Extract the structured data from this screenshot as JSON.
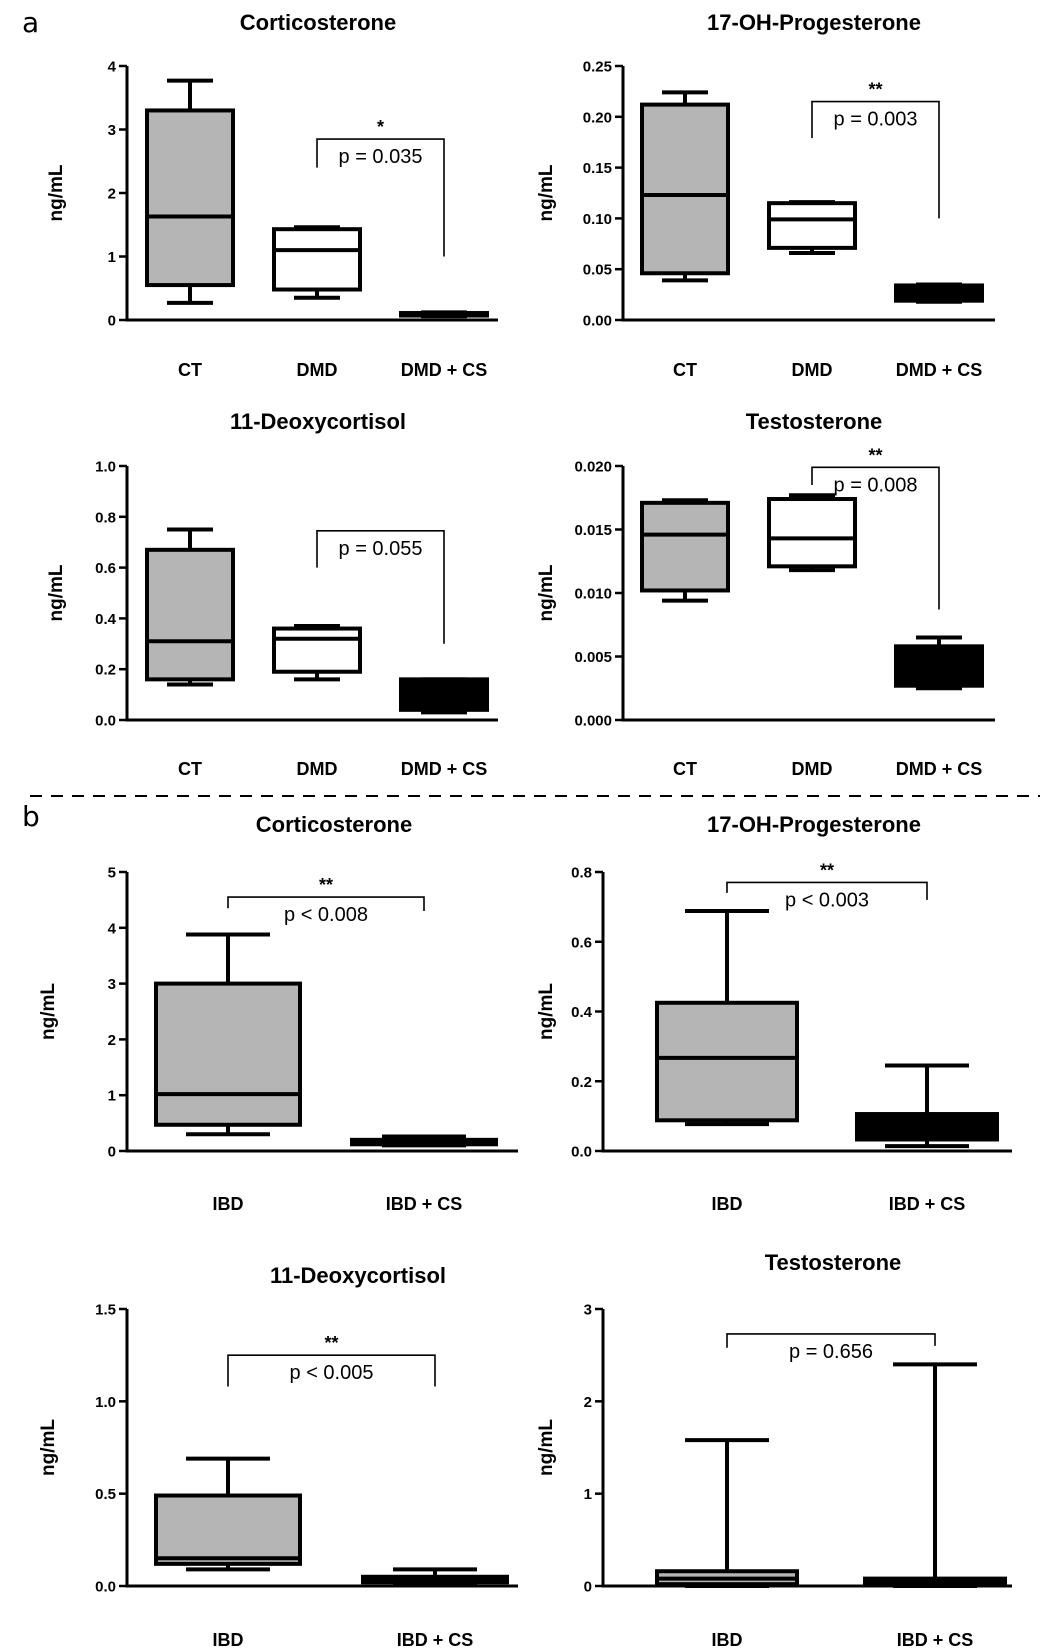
{
  "panels": [
    {
      "letter": "a"
    },
    {
      "letter": "b"
    }
  ],
  "colors": {
    "ct_fill": "#b5b5b5",
    "ibd_fill": "#b5b5b5",
    "dmd_fill": "#ffffff",
    "dmd_cs_fill": "#000000",
    "ibd_cs_fill": "#000000",
    "stroke": "#000000"
  },
  "chart_data": [
    {
      "panel": "a",
      "type": "box",
      "title": "Corticosterone",
      "ylabel": "ng/mL",
      "ylim": [
        0,
        4
      ],
      "yticks": [
        "0",
        "1",
        "2",
        "3",
        "4"
      ],
      "ytick_values": [
        0,
        1,
        2,
        3,
        4
      ],
      "categories": [
        "CT",
        "DMD",
        "DMD + CS"
      ],
      "boxes": [
        {
          "min": 0.27,
          "q1": 0.55,
          "median": 1.63,
          "q3": 3.3,
          "max": 3.77
        },
        {
          "min": 0.35,
          "q1": 0.48,
          "median": 1.1,
          "q3": 1.43,
          "max": 1.46
        },
        {
          "min": 0.06,
          "q1": 0.07,
          "median": 0.09,
          "q3": 0.11,
          "max": 0.12
        }
      ],
      "bracket": {
        "from": 1,
        "to": 2,
        "top": 2.85,
        "left_bottom": 2.4,
        "right_bottom": 1.0,
        "stars": "*",
        "pvalue": "p = 0.035"
      }
    },
    {
      "panel": "a",
      "type": "box",
      "title": "17-OH-Progesterone",
      "ylabel": "ng/mL",
      "ylim": [
        0,
        0.25
      ],
      "yticks": [
        "0.00",
        "0.05",
        "0.10",
        "0.15",
        "0.20",
        "0.25"
      ],
      "ytick_values": [
        0,
        0.05,
        0.1,
        0.15,
        0.2,
        0.25
      ],
      "categories": [
        "CT",
        "DMD",
        "DMD + CS"
      ],
      "boxes": [
        {
          "min": 0.039,
          "q1": 0.046,
          "median": 0.123,
          "q3": 0.212,
          "max": 0.224
        },
        {
          "min": 0.066,
          "q1": 0.071,
          "median": 0.099,
          "q3": 0.115,
          "max": 0.116
        },
        {
          "min": 0.018,
          "q1": 0.019,
          "median": 0.027,
          "q3": 0.034,
          "max": 0.035
        }
      ],
      "bracket": {
        "from": 1,
        "to": 2,
        "top": 0.215,
        "left_bottom": 0.179,
        "right_bottom": 0.1,
        "stars": "**",
        "pvalue": "p = 0.003"
      }
    },
    {
      "panel": "a",
      "type": "box",
      "title": "11-Deoxycortisol",
      "ylabel": "ng/mL",
      "ylim": [
        0,
        1.0
      ],
      "yticks": [
        "0.0",
        "0.2",
        "0.4",
        "0.6",
        "0.8",
        "1.0"
      ],
      "ytick_values": [
        0,
        0.2,
        0.4,
        0.6,
        0.8,
        1.0
      ],
      "categories": [
        "CT",
        "DMD",
        "DMD + CS"
      ],
      "boxes": [
        {
          "min": 0.14,
          "q1": 0.16,
          "median": 0.31,
          "q3": 0.67,
          "max": 0.75
        },
        {
          "min": 0.16,
          "q1": 0.19,
          "median": 0.32,
          "q3": 0.36,
          "max": 0.37
        },
        {
          "min": 0.03,
          "q1": 0.04,
          "median": 0.11,
          "q3": 0.16,
          "max": 0.16
        }
      ],
      "bracket": {
        "from": 1,
        "to": 2,
        "top": 0.745,
        "left_bottom": 0.6,
        "right_bottom": 0.3,
        "stars": "",
        "pvalue": "p = 0.055"
      }
    },
    {
      "panel": "a",
      "type": "box",
      "title": "Testosterone",
      "ylabel": "ng/mL",
      "ylim": [
        0,
        0.02
      ],
      "yticks": [
        "0.000",
        "0.005",
        "0.010",
        "0.015",
        "0.020"
      ],
      "ytick_values": [
        0,
        0.005,
        0.01,
        0.015,
        0.02
      ],
      "categories": [
        "CT",
        "DMD",
        "DMD + CS"
      ],
      "boxes": [
        {
          "min": 0.0094,
          "q1": 0.0102,
          "median": 0.0146,
          "q3": 0.0171,
          "max": 0.0173
        },
        {
          "min": 0.0118,
          "q1": 0.0121,
          "median": 0.0143,
          "q3": 0.0174,
          "max": 0.0177
        },
        {
          "min": 0.0025,
          "q1": 0.0027,
          "median": 0.0042,
          "q3": 0.0058,
          "max": 0.0065
        }
      ],
      "bracket": {
        "from": 1,
        "to": 2,
        "top": 0.0199,
        "left_bottom": 0.0185,
        "right_bottom": 0.0087,
        "stars": "**",
        "pvalue": "p = 0.008"
      }
    },
    {
      "panel": "b",
      "type": "box",
      "title": "Corticosterone",
      "ylabel": "ng/mL",
      "ylim": [
        0,
        5
      ],
      "yticks": [
        "0",
        "1",
        "2",
        "3",
        "4",
        "5"
      ],
      "ytick_values": [
        0,
        1,
        2,
        3,
        4,
        5
      ],
      "categories": [
        "IBD",
        "IBD + CS"
      ],
      "boxes": [
        {
          "min": 0.3,
          "q1": 0.47,
          "median": 1.02,
          "q3": 3.0,
          "max": 3.88
        },
        {
          "min": 0.1,
          "q1": 0.12,
          "median": 0.17,
          "q3": 0.2,
          "max": 0.26
        }
      ],
      "bracket": {
        "from": 0,
        "to": 1,
        "top": 4.55,
        "left_bottom": 4.35,
        "right_bottom": 4.3,
        "stars": "**",
        "pvalue": "p < 0.008"
      }
    },
    {
      "panel": "b",
      "type": "box",
      "title": "17-OH-Progesterone",
      "ylabel": "ng/mL",
      "ylim": [
        0,
        0.8
      ],
      "yticks": [
        "0.0",
        "0.2",
        "0.4",
        "0.6",
        "0.8"
      ],
      "ytick_values": [
        0,
        0.2,
        0.4,
        0.6,
        0.8
      ],
      "categories": [
        "IBD",
        "IBD + CS"
      ],
      "boxes": [
        {
          "min": 0.077,
          "q1": 0.088,
          "median": 0.267,
          "q3": 0.425,
          "max": 0.688
        },
        {
          "min": 0.014,
          "q1": 0.033,
          "median": 0.055,
          "q3": 0.106,
          "max": 0.245
        }
      ],
      "bracket": {
        "from": 0,
        "to": 1,
        "top": 0.77,
        "left_bottom": 0.74,
        "right_bottom": 0.72,
        "stars": "**",
        "pvalue": "p < 0.003"
      }
    },
    {
      "panel": "b",
      "type": "box",
      "title": "11-Deoxycortisol",
      "ylabel": "ng/mL",
      "ylim": [
        0,
        1.5
      ],
      "yticks": [
        "0.0",
        "0.5",
        "1.0",
        "1.5"
      ],
      "ytick_values": [
        0,
        0.5,
        1.0,
        1.5
      ],
      "categories": [
        "IBD",
        "IBD + CS"
      ],
      "boxes": [
        {
          "min": 0.09,
          "q1": 0.12,
          "median": 0.15,
          "q3": 0.49,
          "max": 0.69
        },
        {
          "min": 0.01,
          "q1": 0.02,
          "median": 0.03,
          "q3": 0.05,
          "max": 0.09
        }
      ],
      "bracket": {
        "from": 0,
        "to": 1,
        "top": 1.25,
        "left_bottom": 1.08,
        "right_bottom": 1.08,
        "stars": "**",
        "pvalue": "p < 0.005"
      }
    },
    {
      "panel": "b",
      "type": "box",
      "title": "Testosterone",
      "ylabel": "ng/mL",
      "ylim": [
        0,
        3
      ],
      "yticks": [
        "0",
        "1",
        "2",
        "3"
      ],
      "ytick_values": [
        0,
        1,
        2,
        3
      ],
      "categories": [
        "IBD",
        "IBD + CS"
      ],
      "boxes": [
        {
          "min": 0.0,
          "q1": 0.02,
          "median": 0.08,
          "q3": 0.16,
          "max": 1.58
        },
        {
          "min": 0.0,
          "q1": 0.01,
          "median": 0.04,
          "q3": 0.08,
          "max": 2.4
        }
      ],
      "bracket": {
        "from": 0,
        "to": 1,
        "top": 2.73,
        "left_bottom": 2.58,
        "right_bottom": 2.6,
        "stars": "",
        "pvalue": "p = 0.656"
      }
    }
  ]
}
